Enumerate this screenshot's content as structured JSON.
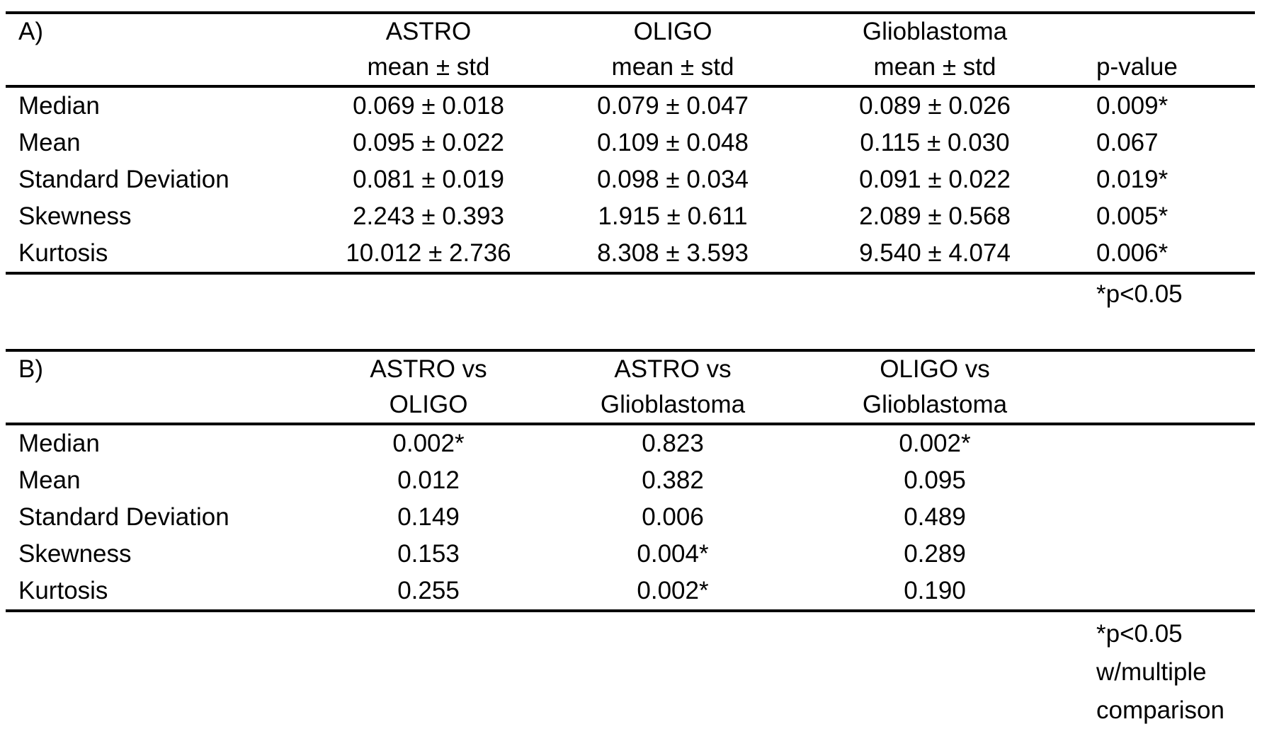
{
  "tableA": {
    "label": "A)",
    "col_groups": [
      "ASTRO",
      "OLIGO",
      "Glioblastoma"
    ],
    "sub_header": "mean ± std",
    "p_header": "p-value",
    "rows": [
      {
        "label": "Median",
        "astro": "0.069 ± 0.018",
        "oligo": "0.079 ± 0.047",
        "gbm": "0.089 ± 0.026",
        "p": "0.009*"
      },
      {
        "label": "Mean",
        "astro": "0.095 ± 0.022",
        "oligo": "0.109 ± 0.048",
        "gbm": "0.115 ± 0.030",
        "p": "0.067"
      },
      {
        "label": "Standard Deviation",
        "astro": "0.081 ± 0.019",
        "oligo": "0.098 ± 0.034",
        "gbm": "0.091 ± 0.022",
        "p": "0.019*"
      },
      {
        "label": "Skewness",
        "astro": "2.243 ± 0.393",
        "oligo": "1.915 ± 0.611",
        "gbm": "2.089 ± 0.568",
        "p": "0.005*"
      },
      {
        "label": "Kurtosis",
        "astro": "10.012 ± 2.736",
        "oligo": "8.308 ± 3.593",
        "gbm": "9.540 ± 4.074",
        "p": "0.006*"
      }
    ],
    "footnote": "*p<0.05"
  },
  "tableB": {
    "label": "B)",
    "columns": [
      {
        "line1": "ASTRO vs",
        "line2": "OLIGO"
      },
      {
        "line1": "ASTRO vs",
        "line2": "Glioblastoma"
      },
      {
        "line1": "OLIGO vs",
        "line2": "Glioblastoma"
      }
    ],
    "rows": [
      {
        "label": "Median",
        "c1": "0.002*",
        "c2": "0.823",
        "c3": "0.002*"
      },
      {
        "label": "Mean",
        "c1": "0.012",
        "c2": "0.382",
        "c3": "0.095"
      },
      {
        "label": "Standard Deviation",
        "c1": "0.149",
        "c2": "0.006",
        "c3": "0.489"
      },
      {
        "label": "Skewness",
        "c1": "0.153",
        "c2": "0.004*",
        "c3": "0.289"
      },
      {
        "label": "Kurtosis",
        "c1": "0.255",
        "c2": "0.002*",
        "c3": "0.190"
      }
    ],
    "footnote_lines": [
      "*p<0.05",
      "w/multiple",
      "comparison"
    ]
  }
}
